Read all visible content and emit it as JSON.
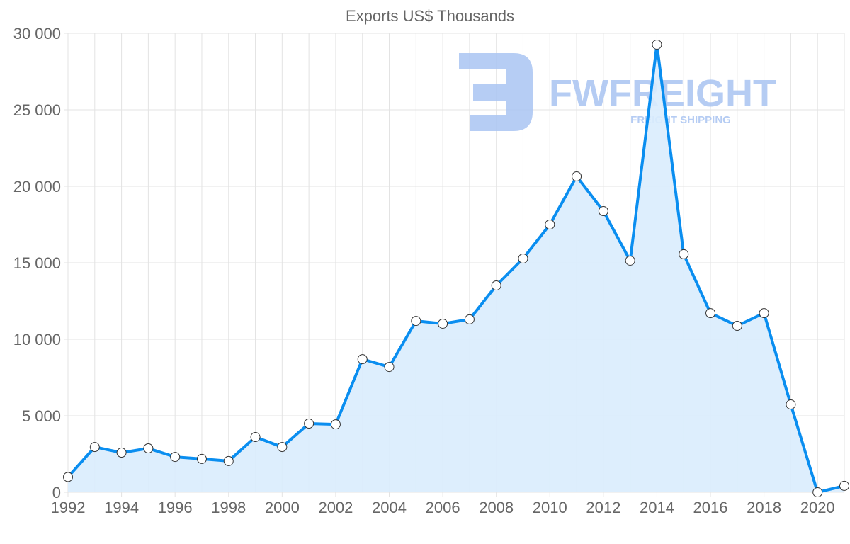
{
  "chart_data": {
    "type": "line",
    "title": "Exports US$ Thousands",
    "xlabel": "",
    "ylabel": "",
    "x": [
      1992,
      1993,
      1994,
      1995,
      1996,
      1997,
      1998,
      1999,
      2000,
      2001,
      2002,
      2003,
      2004,
      2005,
      2006,
      2007,
      2008,
      2009,
      2010,
      2011,
      2012,
      2013,
      2014,
      2015,
      2016,
      2017,
      2018,
      2019,
      2020,
      2021
    ],
    "series": [
      {
        "name": "Exports US$ Thousands",
        "values": [
          1000,
          2960,
          2590,
          2870,
          2310,
          2180,
          2040,
          3610,
          2960,
          4490,
          4440,
          8700,
          8190,
          11200,
          11020,
          11300,
          13520,
          15280,
          17500,
          20650,
          18380,
          15140,
          29260,
          15560,
          11710,
          10880,
          11710,
          5740,
          0,
          420
        ]
      }
    ],
    "ylim": [
      0,
      30000
    ],
    "xlim": [
      1992,
      2021
    ],
    "y_ticks": [
      0,
      5000,
      10000,
      15000,
      20000,
      25000,
      30000
    ],
    "y_tick_labels": [
      "0",
      "5 000",
      "10 000",
      "15 000",
      "20 000",
      "25 000",
      "30 000"
    ],
    "x_tick_labels": [
      "1992",
      "1994",
      "1996",
      "1998",
      "2000",
      "2002",
      "2004",
      "2006",
      "2008",
      "2010",
      "2012",
      "2014",
      "2016",
      "2018",
      "2020"
    ],
    "grid": true,
    "colors": {
      "line": "#0a8ef0",
      "fill": "#d9ecfd",
      "grid": "#e3e3e3",
      "text": "#666666",
      "watermark": "#a9c4f2"
    }
  },
  "watermark": {
    "brand": "FWFREIGHT",
    "tagline": "FREIGHT SHIPPING"
  }
}
